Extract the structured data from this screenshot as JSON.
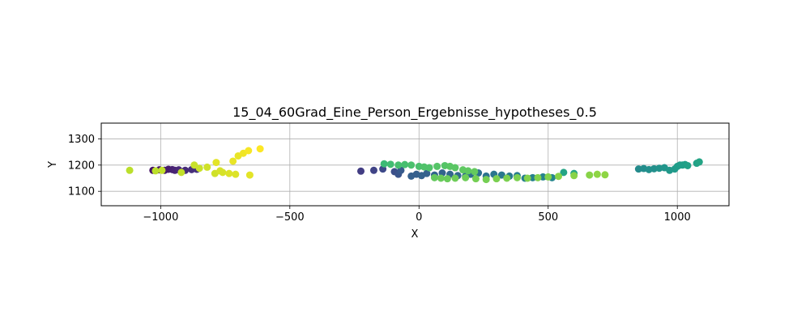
{
  "chart_data": {
    "type": "scatter",
    "title": "15_04_60Grad_Eine_Person_Ergebnisse_hypotheses_0.5",
    "xlabel": "X",
    "ylabel": "Y",
    "xlim": [
      -1230,
      1200
    ],
    "ylim": [
      1045,
      1360
    ],
    "xticks": [
      -1000,
      -500,
      0,
      500,
      1000
    ],
    "yticks": [
      1100,
      1200,
      1300
    ],
    "xtick_labels": [
      "−1000",
      "−500",
      "0",
      "500",
      "1000"
    ],
    "ytick_labels": [
      "1100",
      "1200",
      "1300"
    ],
    "grid": true,
    "colormap": "viridis",
    "points": [
      {
        "x": -1030,
        "y": 1180,
        "c": 0.05
      },
      {
        "x": -1005,
        "y": 1182,
        "c": 0.06
      },
      {
        "x": -985,
        "y": 1180,
        "c": 0.07
      },
      {
        "x": -970,
        "y": 1184,
        "c": 0.08
      },
      {
        "x": -955,
        "y": 1183,
        "c": 0.09
      },
      {
        "x": -945,
        "y": 1180,
        "c": 0.1
      },
      {
        "x": -930,
        "y": 1182,
        "c": 0.11
      },
      {
        "x": -905,
        "y": 1180,
        "c": 0.12
      },
      {
        "x": -880,
        "y": 1183,
        "c": 0.13
      },
      {
        "x": -860,
        "y": 1184,
        "c": 0.14
      },
      {
        "x": -225,
        "y": 1177,
        "c": 0.18
      },
      {
        "x": -175,
        "y": 1180,
        "c": 0.2
      },
      {
        "x": -140,
        "y": 1185,
        "c": 0.22
      },
      {
        "x": -95,
        "y": 1175,
        "c": 0.24
      },
      {
        "x": -80,
        "y": 1165,
        "c": 0.26
      },
      {
        "x": -70,
        "y": 1180,
        "c": 0.28
      },
      {
        "x": -30,
        "y": 1158,
        "c": 0.3
      },
      {
        "x": -10,
        "y": 1165,
        "c": 0.3
      },
      {
        "x": 10,
        "y": 1160,
        "c": 0.31
      },
      {
        "x": 30,
        "y": 1168,
        "c": 0.31
      },
      {
        "x": 60,
        "y": 1162,
        "c": 0.32
      },
      {
        "x": 90,
        "y": 1170,
        "c": 0.32
      },
      {
        "x": 120,
        "y": 1165,
        "c": 0.33
      },
      {
        "x": 150,
        "y": 1160,
        "c": 0.34
      },
      {
        "x": 180,
        "y": 1158,
        "c": 0.35
      },
      {
        "x": 200,
        "y": 1165,
        "c": 0.36
      },
      {
        "x": 230,
        "y": 1170,
        "c": 0.37
      },
      {
        "x": 260,
        "y": 1158,
        "c": 0.38
      },
      {
        "x": 290,
        "y": 1165,
        "c": 0.39
      },
      {
        "x": 320,
        "y": 1162,
        "c": 0.4
      },
      {
        "x": 350,
        "y": 1158,
        "c": 0.41
      },
      {
        "x": 380,
        "y": 1160,
        "c": 0.42
      },
      {
        "x": 410,
        "y": 1150,
        "c": 0.43
      },
      {
        "x": 440,
        "y": 1152,
        "c": 0.44
      },
      {
        "x": 480,
        "y": 1155,
        "c": 0.45
      },
      {
        "x": 515,
        "y": 1152,
        "c": 0.46
      },
      {
        "x": 850,
        "y": 1185,
        "c": 0.48
      },
      {
        "x": 870,
        "y": 1187,
        "c": 0.49
      },
      {
        "x": 890,
        "y": 1183,
        "c": 0.5
      },
      {
        "x": 910,
        "y": 1186,
        "c": 0.5
      },
      {
        "x": 930,
        "y": 1188,
        "c": 0.51
      },
      {
        "x": 950,
        "y": 1190,
        "c": 0.52
      },
      {
        "x": 970,
        "y": 1180,
        "c": 0.53
      },
      {
        "x": 990,
        "y": 1185,
        "c": 0.54
      },
      {
        "x": 1000,
        "y": 1195,
        "c": 0.55
      },
      {
        "x": 1010,
        "y": 1200,
        "c": 0.55
      },
      {
        "x": 1020,
        "y": 1200,
        "c": 0.56
      },
      {
        "x": 1030,
        "y": 1202,
        "c": 0.56
      },
      {
        "x": 1040,
        "y": 1198,
        "c": 0.57
      },
      {
        "x": 1075,
        "y": 1207,
        "c": 0.57
      },
      {
        "x": 1085,
        "y": 1212,
        "c": 0.58
      },
      {
        "x": 560,
        "y": 1172,
        "c": 0.58
      },
      {
        "x": 600,
        "y": 1168,
        "c": 0.59
      },
      {
        "x": -135,
        "y": 1205,
        "c": 0.68
      },
      {
        "x": -110,
        "y": 1203,
        "c": 0.69
      },
      {
        "x": -80,
        "y": 1200,
        "c": 0.7
      },
      {
        "x": -55,
        "y": 1202,
        "c": 0.7
      },
      {
        "x": -30,
        "y": 1200,
        "c": 0.71
      },
      {
        "x": 0,
        "y": 1195,
        "c": 0.71
      },
      {
        "x": 20,
        "y": 1193,
        "c": 0.72
      },
      {
        "x": 40,
        "y": 1190,
        "c": 0.72
      },
      {
        "x": 70,
        "y": 1195,
        "c": 0.73
      },
      {
        "x": 100,
        "y": 1198,
        "c": 0.73
      },
      {
        "x": 120,
        "y": 1195,
        "c": 0.74
      },
      {
        "x": 140,
        "y": 1190,
        "c": 0.74
      },
      {
        "x": 170,
        "y": 1182,
        "c": 0.75
      },
      {
        "x": 190,
        "y": 1178,
        "c": 0.75
      },
      {
        "x": 215,
        "y": 1175,
        "c": 0.76
      },
      {
        "x": 60,
        "y": 1152,
        "c": 0.76
      },
      {
        "x": 85,
        "y": 1150,
        "c": 0.77
      },
      {
        "x": 110,
        "y": 1148,
        "c": 0.77
      },
      {
        "x": 140,
        "y": 1150,
        "c": 0.78
      },
      {
        "x": 180,
        "y": 1152,
        "c": 0.78
      },
      {
        "x": 220,
        "y": 1148,
        "c": 0.79
      },
      {
        "x": 260,
        "y": 1145,
        "c": 0.79
      },
      {
        "x": 300,
        "y": 1148,
        "c": 0.8
      },
      {
        "x": 340,
        "y": 1150,
        "c": 0.8
      },
      {
        "x": 380,
        "y": 1152,
        "c": 0.8
      },
      {
        "x": 420,
        "y": 1150,
        "c": 0.81
      },
      {
        "x": 460,
        "y": 1152,
        "c": 0.81
      },
      {
        "x": 500,
        "y": 1155,
        "c": 0.81
      },
      {
        "x": 540,
        "y": 1157,
        "c": 0.82
      },
      {
        "x": 600,
        "y": 1160,
        "c": 0.82
      },
      {
        "x": 660,
        "y": 1162,
        "c": 0.82
      },
      {
        "x": 690,
        "y": 1165,
        "c": 0.83
      },
      {
        "x": 720,
        "y": 1163,
        "c": 0.83
      },
      {
        "x": -1120,
        "y": 1180,
        "c": 0.9
      },
      {
        "x": -1020,
        "y": 1178,
        "c": 0.9
      },
      {
        "x": -995,
        "y": 1180,
        "c": 0.91
      },
      {
        "x": -920,
        "y": 1172,
        "c": 0.91
      },
      {
        "x": -870,
        "y": 1200,
        "c": 0.92
      },
      {
        "x": -850,
        "y": 1188,
        "c": 0.92
      },
      {
        "x": -820,
        "y": 1192,
        "c": 0.93
      },
      {
        "x": -790,
        "y": 1168,
        "c": 0.93
      },
      {
        "x": -770,
        "y": 1178,
        "c": 0.94
      },
      {
        "x": -760,
        "y": 1172,
        "c": 0.94
      },
      {
        "x": -735,
        "y": 1168,
        "c": 0.95
      },
      {
        "x": -710,
        "y": 1165,
        "c": 0.95
      },
      {
        "x": -655,
        "y": 1162,
        "c": 0.96
      },
      {
        "x": -785,
        "y": 1210,
        "c": 0.96
      },
      {
        "x": -720,
        "y": 1215,
        "c": 0.97
      },
      {
        "x": -700,
        "y": 1235,
        "c": 0.97
      },
      {
        "x": -680,
        "y": 1245,
        "c": 0.98
      },
      {
        "x": -660,
        "y": 1255,
        "c": 0.99
      },
      {
        "x": -615,
        "y": 1262,
        "c": 1.0
      }
    ]
  }
}
